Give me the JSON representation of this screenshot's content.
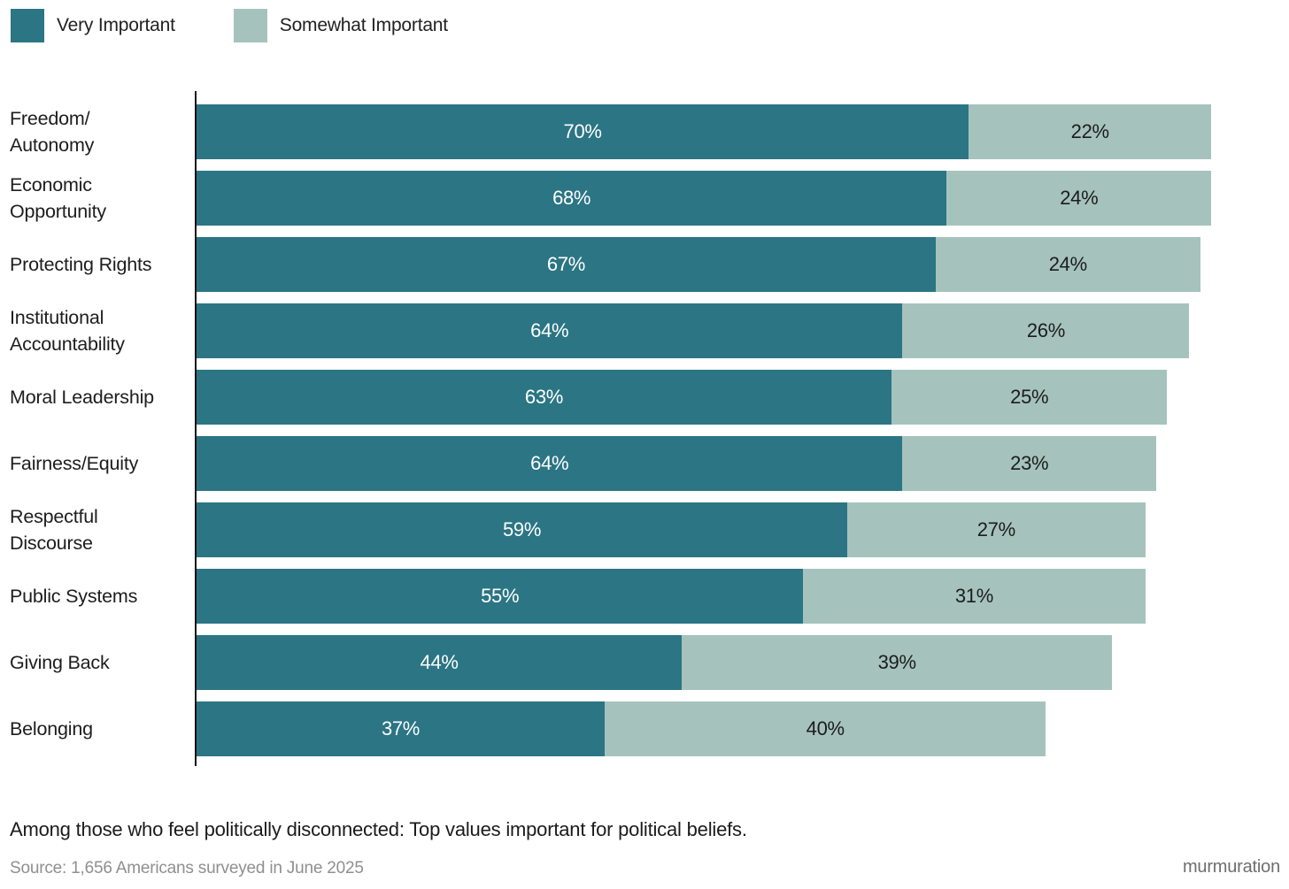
{
  "legend": [
    {
      "label": "Very Important",
      "color": "#2b7584"
    },
    {
      "label": "Somewhat Important",
      "color": "#a5c3bc"
    }
  ],
  "chart_data": {
    "type": "bar",
    "orientation": "horizontal",
    "stacked": true,
    "categories": [
      "Freedom/\nAutonomy",
      "Economic\nOpportunity",
      "Protecting Rights",
      "Institutional\nAccountability",
      "Moral Leadership",
      "Fairness/Equity",
      "Respectful\nDiscourse",
      "Public Systems",
      "Giving Back",
      "Belonging"
    ],
    "series": [
      {
        "name": "Very Important",
        "color": "#2b7584",
        "label_color": "#ffffff",
        "values": [
          70,
          68,
          67,
          64,
          63,
          64,
          59,
          55,
          44,
          37
        ]
      },
      {
        "name": "Somewhat Important",
        "color": "#a5c3bc",
        "label_color": "#1c1c1c",
        "values": [
          22,
          24,
          24,
          26,
          25,
          23,
          27,
          31,
          39,
          40
        ]
      }
    ],
    "value_suffix": "%",
    "xlim": [
      0,
      100
    ],
    "grid": false,
    "legend_position": "top-left",
    "title": "Among those who feel politically disconnected: Top values important for political beliefs."
  },
  "footer": {
    "caption": "Among those who feel politically disconnected: Top values important for political beliefs.",
    "source": "Source: 1,656 Americans surveyed in June 2025",
    "credit": "murmuration"
  }
}
